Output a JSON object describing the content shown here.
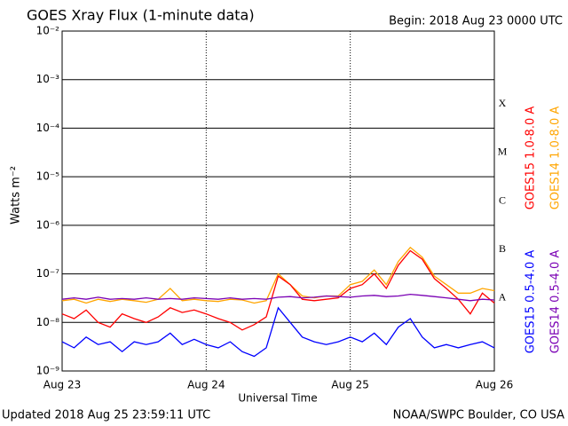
{
  "chart_data": {
    "type": "line",
    "title": "GOES Xray Flux (1-minute data)",
    "subtitle": "Begin:  2018 Aug 23 0000 UTC",
    "y_label": "Watts m⁻²",
    "x_label": "Universal Time",
    "footer_left": "Updated 2018 Aug 25 23:59:11 UTC",
    "footer_right": "NOAA/SWPC Boulder, CO USA",
    "log_y": true,
    "grid": true,
    "flare_classes": [
      "A",
      "B",
      "C",
      "M",
      "X"
    ],
    "xlim": [
      0,
      72
    ],
    "xticks": [
      {
        "value": 0,
        "label": "Aug 23"
      },
      {
        "value": 24,
        "label": "Aug 24"
      },
      {
        "value": 48,
        "label": "Aug 25"
      },
      {
        "value": 72,
        "label": "Aug 26"
      }
    ],
    "ylim": [
      1e-09,
      0.01
    ],
    "yticks": [
      {
        "value": 1e-09,
        "label": "10⁻⁹"
      },
      {
        "value": 1e-08,
        "label": "10⁻⁸"
      },
      {
        "value": 1e-07,
        "label": "10⁻⁷"
      },
      {
        "value": 1e-06,
        "label": "10⁻⁶"
      },
      {
        "value": 1e-05,
        "label": "10⁻⁵"
      },
      {
        "value": 0.0001,
        "label": "10⁻⁴"
      },
      {
        "value": 0.001,
        "label": "10⁻³"
      },
      {
        "value": 0.01,
        "label": "10⁻²"
      }
    ],
    "x": [
      0,
      2,
      4,
      6,
      8,
      10,
      12,
      14,
      16,
      18,
      20,
      22,
      24,
      26,
      28,
      30,
      32,
      34,
      36,
      38,
      40,
      42,
      44,
      46,
      48,
      50,
      52,
      54,
      56,
      58,
      60,
      62,
      64,
      66,
      68,
      70,
      72
    ],
    "series": [
      {
        "name": "GOES15 1.0-8.0 A",
        "color": "#ff0000",
        "values": [
          1.5e-08,
          1.2e-08,
          1.8e-08,
          1e-08,
          8e-09,
          1.5e-08,
          1.2e-08,
          1e-08,
          1.3e-08,
          2e-08,
          1.6e-08,
          1.8e-08,
          1.5e-08,
          1.2e-08,
          1e-08,
          7e-09,
          9e-09,
          1.3e-08,
          9e-08,
          6e-08,
          3e-08,
          2.8e-08,
          3e-08,
          3.2e-08,
          5e-08,
          6e-08,
          1e-07,
          5e-08,
          1.5e-07,
          3e-07,
          2e-07,
          8e-08,
          5e-08,
          3e-08,
          1.5e-08,
          4e-08,
          2.5e-08
        ]
      },
      {
        "name": "GOES14 1.0-8.0 A",
        "color": "#ffa500",
        "values": [
          2.8e-08,
          3e-08,
          2.5e-08,
          3e-08,
          2.7e-08,
          3e-08,
          2.8e-08,
          2.6e-08,
          3e-08,
          5e-08,
          2.8e-08,
          3e-08,
          2.8e-08,
          2.7e-08,
          3e-08,
          2.9e-08,
          2.5e-08,
          2.8e-08,
          1e-07,
          6e-08,
          3.5e-08,
          3.2e-08,
          3.5e-08,
          3.5e-08,
          6e-08,
          7e-08,
          1.2e-07,
          6e-08,
          1.8e-07,
          3.5e-07,
          2.2e-07,
          9e-08,
          6e-08,
          4e-08,
          4e-08,
          5e-08,
          4.5e-08
        ]
      },
      {
        "name": "GOES15 0.5-4.0 A",
        "color": "#0000ff",
        "values": [
          4e-09,
          3e-09,
          5e-09,
          3.5e-09,
          4e-09,
          2.5e-09,
          4e-09,
          3.5e-09,
          4e-09,
          6e-09,
          3.5e-09,
          4.5e-09,
          3.5e-09,
          3e-09,
          4e-09,
          2.5e-09,
          2e-09,
          3e-09,
          2e-08,
          1e-08,
          5e-09,
          4e-09,
          3.5e-09,
          4e-09,
          5e-09,
          4e-09,
          6e-09,
          3.5e-09,
          8e-09,
          1.2e-08,
          5e-09,
          3e-09,
          3.5e-09,
          3e-09,
          3.5e-09,
          4e-09,
          3e-09
        ]
      },
      {
        "name": "GOES14 0.5-4.0 A",
        "color": "#7a00b4",
        "values": [
          3e-08,
          3.2e-08,
          3e-08,
          3.3e-08,
          3e-08,
          3.1e-08,
          3e-08,
          3.2e-08,
          3e-08,
          3.1e-08,
          3e-08,
          3.2e-08,
          3.1e-08,
          3e-08,
          3.2e-08,
          3e-08,
          3.1e-08,
          3e-08,
          3.3e-08,
          3.4e-08,
          3.2e-08,
          3.3e-08,
          3.5e-08,
          3.4e-08,
          3.3e-08,
          3.5e-08,
          3.6e-08,
          3.4e-08,
          3.5e-08,
          3.8e-08,
          3.6e-08,
          3.4e-08,
          3.2e-08,
          3e-08,
          2.8e-08,
          3e-08,
          2.9e-08
        ]
      }
    ]
  }
}
